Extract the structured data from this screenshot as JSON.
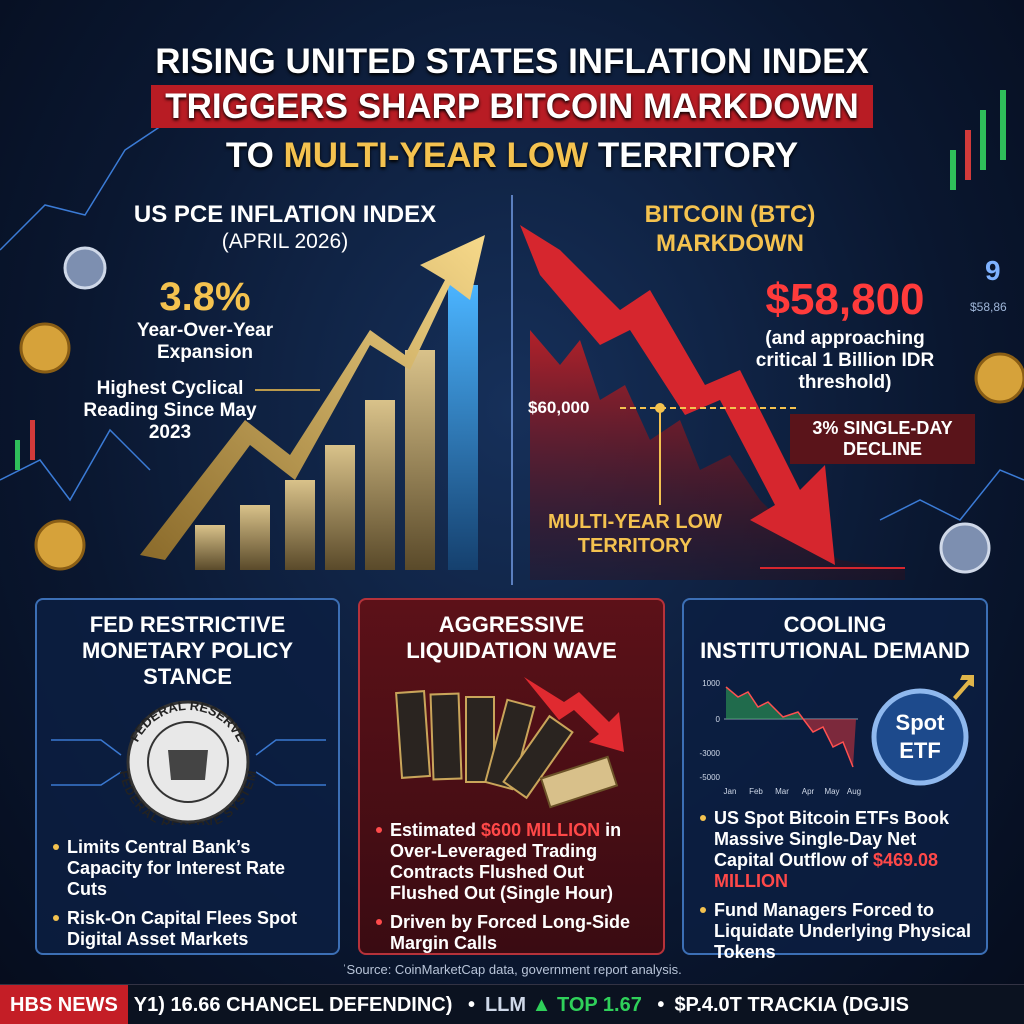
{
  "header": {
    "line1": "RISING UNITED STATES INFLATION INDEX",
    "line2": "TRIGGERS SHARP BITCOIN MARKDOWN",
    "line3_start": "TO",
    "line3_highlight": "MULTI-YEAR LOW",
    "line3_end": "TERRITORY"
  },
  "left_panel": {
    "title": "US PCE INFLATION INDEX",
    "subtitle": "(APRIL 2026)",
    "value": "3.8%",
    "value_caption": "Year-Over-Year Expansion",
    "note": "Highest Cyclical Reading Since May 2023"
  },
  "right_panel": {
    "title": "BITCOIN (BTC) MARKDOWN",
    "price": "$58,800",
    "price_note": "(and approaching critical 1 Billion IDR threshold)",
    "level": "$60,000",
    "decline": "3% SINGLE-DAY DECLINE",
    "low_label": "MULTI-YEAR LOW TERRITORY",
    "side_numbers": [
      "9",
      "$58,86"
    ]
  },
  "cards": [
    {
      "title": "FED RESTRICTIVE MONETARY POLICY STANCE",
      "seal_top": "FEDERAL RESERVE",
      "seal_bottom": "FEDERAL RESERVE SYSTEM",
      "bullets": [
        {
          "text": "Limits Central Bank’s Capacity for Interest Rate Cuts"
        },
        {
          "text": "Risk-On Capital Flees Spot Digital Asset Markets"
        }
      ]
    },
    {
      "title": "AGGRESSIVE LIQUIDATION WAVE",
      "bullets": [
        {
          "before": "Estimated",
          "highlight": "$600 MILLION",
          "after": "in Over-Leveraged Trading Contracts Flushed Out Flushed Out (Single Hour)"
        },
        {
          "text": "Driven by Forced Long-Side Margin Calls"
        }
      ]
    },
    {
      "title": "COOLING INSTITUTIONAL DEMAND",
      "mini_chart": {
        "y_labels": [
          "1000",
          "0",
          "-3000",
          "-5000"
        ],
        "x_labels": [
          "Jan",
          "Feb",
          "Mar",
          "Apr",
          "May",
          "Aug"
        ]
      },
      "badge": [
        "Spot",
        "ETF"
      ],
      "bullets": [
        {
          "before": "US Spot Bitcoin ETFs Book Massive Single-Day Net Capital Outflow of",
          "highlight": "$469.08 MILLION",
          "after": ""
        },
        {
          "text": "Fund Managers Forced to Liquidate Underlying Physical Tokens"
        }
      ]
    }
  ],
  "source": "ˈSource: CoinMarketCap data, government report analysis.",
  "ticker": {
    "brand": "HBS NEWS",
    "item1": "Y1) 16.66 CHANCEL DEFENDINC)",
    "item2_a": "LLM",
    "item2_b": "▲ TOP 1.67",
    "item3": "$P.4.0T TRACKIA (DGJIS"
  }
}
